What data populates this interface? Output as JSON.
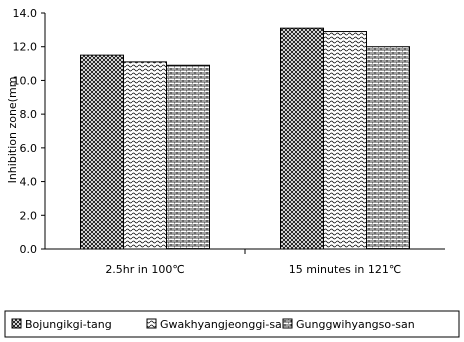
{
  "chart_data": {
    "type": "bar",
    "title": "",
    "xlabel": "",
    "ylabel": "Inhibition zone(mm",
    "ylim": [
      0,
      14
    ],
    "yticks": [
      "0.0",
      "2.0",
      "4.0",
      "6.0",
      "8.0",
      "10.0",
      "12.0",
      "14.0"
    ],
    "categories": [
      "2.5hr in 100℃",
      "15 minutes in 121℃"
    ],
    "series": [
      {
        "name": "Bojungikgi-tang",
        "values": [
          11.5,
          13.1
        ],
        "pattern": "crosshatch"
      },
      {
        "name": "Gwakhyangjeonggi-san",
        "values": [
          11.1,
          12.9
        ],
        "pattern": "wave"
      },
      {
        "name": "Gunggwihyangso-san",
        "values": [
          10.9,
          12.0
        ],
        "pattern": "brick"
      }
    ],
    "grid": false,
    "legend_position": "bottom"
  }
}
